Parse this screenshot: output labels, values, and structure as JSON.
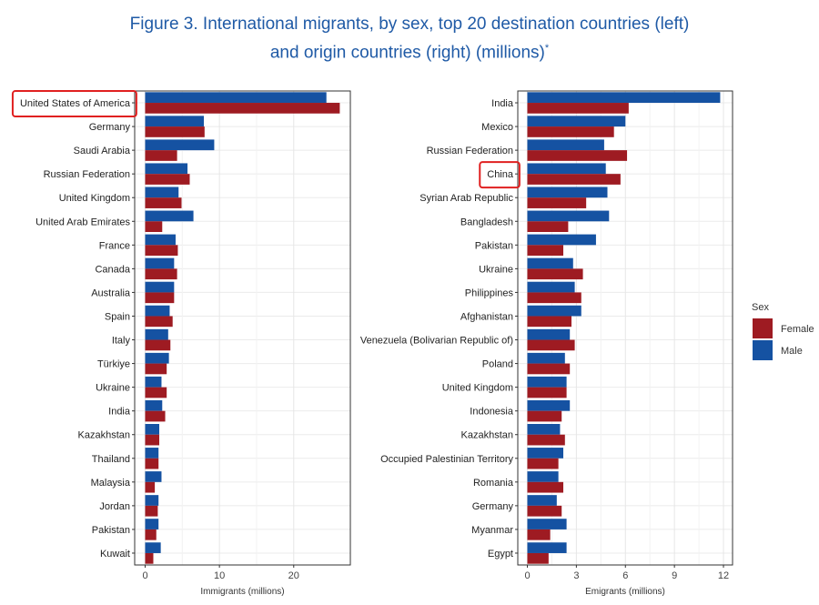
{
  "title": {
    "line1": "Figure 3. International migrants, by sex, top 20 destination countries (left)",
    "line2": "and origin countries (right) (millions)",
    "asterisk": "*"
  },
  "legend": {
    "title": "Sex",
    "items": [
      {
        "label": "Female",
        "color": "#9e1b22"
      },
      {
        "label": "Male",
        "color": "#1552a2"
      }
    ]
  },
  "highlights": [
    "United States of America",
    "China"
  ],
  "chart_data": [
    {
      "type": "bar",
      "orientation": "horizontal",
      "xlabel": "Immigrants (millions)",
      "xlim": [
        0,
        27.5
      ],
      "xticks": [
        0,
        10,
        20
      ],
      "grid": true,
      "categories": [
        "United States of America",
        "Germany",
        "Saudi Arabia",
        "Russian Federation",
        "United Kingdom",
        "United Arab Emirates",
        "France",
        "Canada",
        "Australia",
        "Spain",
        "Italy",
        "Türkiye",
        "Ukraine",
        "India",
        "Kazakhstan",
        "Thailand",
        "Malaysia",
        "Jordan",
        "Pakistan",
        "Kuwait"
      ],
      "series": [
        {
          "name": "Male",
          "values": [
            24.4,
            7.9,
            9.3,
            5.7,
            4.5,
            6.5,
            4.1,
            3.9,
            3.9,
            3.3,
            3.1,
            3.2,
            2.2,
            2.3,
            1.9,
            1.8,
            2.2,
            1.8,
            1.8,
            2.1
          ]
        },
        {
          "name": "Female",
          "values": [
            26.2,
            8.0,
            4.3,
            6.0,
            4.9,
            2.3,
            4.4,
            4.3,
            3.9,
            3.7,
            3.4,
            2.9,
            2.9,
            2.7,
            1.9,
            1.8,
            1.3,
            1.7,
            1.5,
            1.1
          ]
        }
      ]
    },
    {
      "type": "bar",
      "orientation": "horizontal",
      "xlabel": "Emigrants (millions)",
      "xlim": [
        0,
        12.5
      ],
      "xticks": [
        0,
        3,
        6,
        9,
        12
      ],
      "grid": true,
      "categories": [
        "India",
        "Mexico",
        "Russian Federation",
        "China",
        "Syrian Arab Republic",
        "Bangladesh",
        "Pakistan",
        "Ukraine",
        "Philippines",
        "Afghanistan",
        "Venezuela (Bolivarian Republic of)",
        "Poland",
        "United Kingdom",
        "Indonesia",
        "Kazakhstan",
        "Occupied Palestinian Territory",
        "Romania",
        "Germany",
        "Myanmar",
        "Egypt"
      ],
      "series": [
        {
          "name": "Male",
          "values": [
            11.8,
            6.0,
            4.7,
            4.8,
            4.9,
            5.0,
            4.2,
            2.8,
            2.9,
            3.3,
            2.6,
            2.3,
            2.4,
            2.6,
            2.0,
            2.2,
            1.9,
            1.8,
            2.4,
            2.4
          ]
        },
        {
          "name": "Female",
          "values": [
            6.2,
            5.3,
            6.1,
            5.7,
            3.6,
            2.5,
            2.2,
            3.4,
            3.3,
            2.7,
            2.9,
            2.6,
            2.4,
            2.1,
            2.3,
            1.9,
            2.2,
            2.1,
            1.4,
            1.3
          ]
        }
      ]
    }
  ]
}
